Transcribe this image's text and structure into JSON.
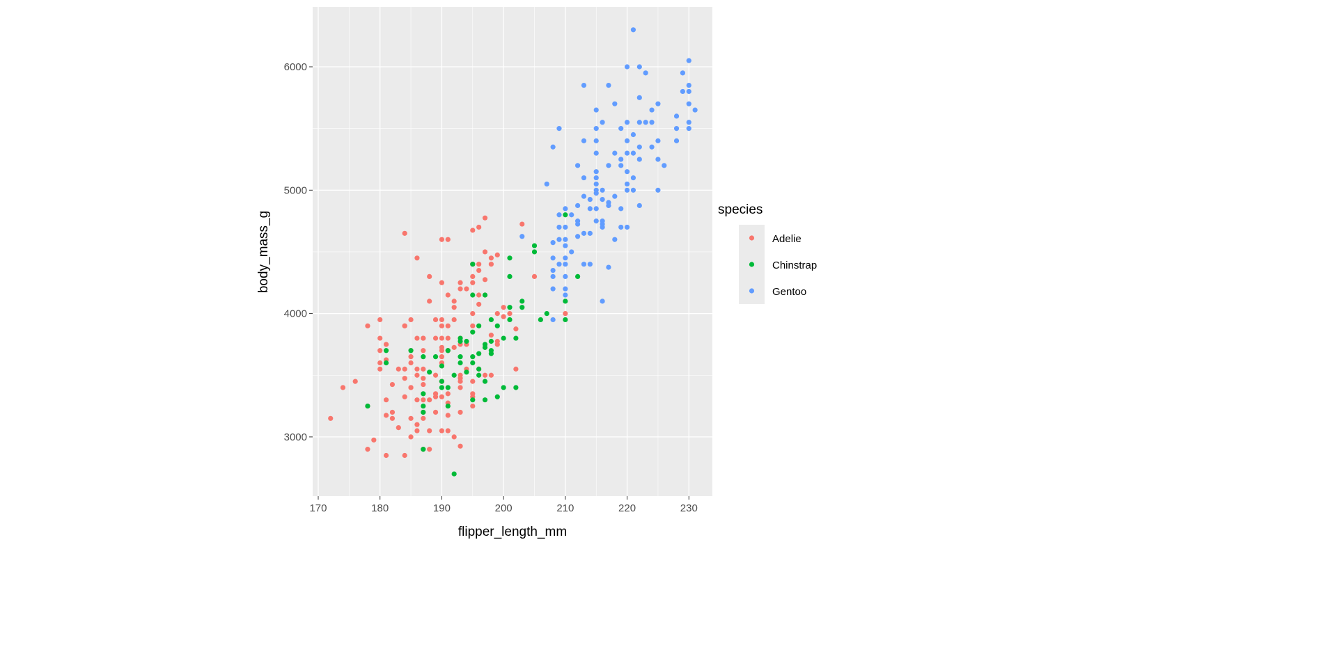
{
  "chart_data": {
    "type": "scatter",
    "xlabel": "flipper_length_mm",
    "ylabel": "body_mass_g",
    "xlim": [
      169.1,
      233.8
    ],
    "ylim": [
      2520,
      6485
    ],
    "xticks": [
      170,
      180,
      190,
      200,
      210,
      220,
      230
    ],
    "yticks": [
      3000,
      4000,
      5000,
      6000
    ],
    "xtick_labels": [
      "170",
      "180",
      "190",
      "200",
      "210",
      "220",
      "230"
    ],
    "ytick_labels": [
      "3000",
      "4000",
      "5000",
      "6000"
    ],
    "grid": true,
    "legend": {
      "title": "species",
      "placement": "right"
    },
    "series": [
      {
        "name": "Adelie",
        "color": "#F8766D",
        "points": [
          [
            181,
            3750
          ],
          [
            186,
            3800
          ],
          [
            195,
            3250
          ],
          [
            193,
            3450
          ],
          [
            190,
            3650
          ],
          [
            181,
            3625
          ],
          [
            195,
            4675
          ],
          [
            193,
            3475
          ],
          [
            190,
            4250
          ],
          [
            186,
            3300
          ],
          [
            180,
            3700
          ],
          [
            182,
            3200
          ],
          [
            191,
            3800
          ],
          [
            198,
            4400
          ],
          [
            185,
            3700
          ],
          [
            195,
            3450
          ],
          [
            197,
            4500
          ],
          [
            184,
            3325
          ],
          [
            194,
            4200
          ],
          [
            174,
            3400
          ],
          [
            180,
            3600
          ],
          [
            189,
            3800
          ],
          [
            185,
            3950
          ],
          [
            180,
            3800
          ],
          [
            187,
            3800
          ],
          [
            183,
            3550
          ],
          [
            187,
            3200
          ],
          [
            172,
            3150
          ],
          [
            180,
            3950
          ],
          [
            178,
            3250
          ],
          [
            178,
            3900
          ],
          [
            188,
            3300
          ],
          [
            184,
            3900
          ],
          [
            195,
            3325
          ],
          [
            196,
            4150
          ],
          [
            190,
            3950
          ],
          [
            180,
            3550
          ],
          [
            181,
            3300
          ],
          [
            184,
            4650
          ],
          [
            182,
            3150
          ],
          [
            195,
            3900
          ],
          [
            186,
            3100
          ],
          [
            196,
            4400
          ],
          [
            185,
            3000
          ],
          [
            190,
            4600
          ],
          [
            182,
            3425
          ],
          [
            179,
            2975
          ],
          [
            190,
            3450
          ],
          [
            191,
            4150
          ],
          [
            186,
            3500
          ],
          [
            188,
            4300
          ],
          [
            190,
            3450
          ],
          [
            200,
            4050
          ],
          [
            187,
            2900
          ],
          [
            191,
            3700
          ],
          [
            186,
            3550
          ],
          [
            193,
            3800
          ],
          [
            181,
            2850
          ],
          [
            194,
            3750
          ],
          [
            185,
            3150
          ],
          [
            195,
            4400
          ],
          [
            185,
            3600
          ],
          [
            192,
            4050
          ],
          [
            184,
            2850
          ],
          [
            192,
            3950
          ],
          [
            195,
            3350
          ],
          [
            188,
            4100
          ],
          [
            190,
            3050
          ],
          [
            198,
            4450
          ],
          [
            190,
            3600
          ],
          [
            190,
            3900
          ],
          [
            196,
            3550
          ],
          [
            197,
            4150
          ],
          [
            190,
            3700
          ],
          [
            195,
            4250
          ],
          [
            191,
            3700
          ],
          [
            184,
            3900
          ],
          [
            187,
            3550
          ],
          [
            195,
            4000
          ],
          [
            189,
            3200
          ],
          [
            196,
            4700
          ],
          [
            187,
            3800
          ],
          [
            193,
            4200
          ],
          [
            191,
            3350
          ],
          [
            194,
            3550
          ],
          [
            190,
            3800
          ],
          [
            189,
            3500
          ],
          [
            189,
            3950
          ],
          [
            190,
            3600
          ],
          [
            202,
            3550
          ],
          [
            205,
            4300
          ],
          [
            185,
            3400
          ],
          [
            186,
            4450
          ],
          [
            187,
            3300
          ],
          [
            196,
            4350
          ],
          [
            178,
            2900
          ],
          [
            192,
            4100
          ],
          [
            192,
            3725
          ],
          [
            203,
            4725
          ],
          [
            183,
            3075
          ],
          [
            193,
            2925
          ],
          [
            184,
            3550
          ],
          [
            199,
            3750
          ],
          [
            181,
            3175
          ],
          [
            197,
            4775
          ],
          [
            198,
            3825
          ],
          [
            191,
            4600
          ],
          [
            193,
            3200
          ],
          [
            197,
            4275
          ],
          [
            191,
            3900
          ],
          [
            196,
            4075
          ],
          [
            188,
            2900
          ],
          [
            199,
            3775
          ],
          [
            189,
            3350
          ],
          [
            189,
            3325
          ],
          [
            187,
            3150
          ],
          [
            198,
            3500
          ],
          [
            176,
            3450
          ],
          [
            202,
            3875
          ],
          [
            186,
            3050
          ],
          [
            199,
            4000
          ],
          [
            191,
            3275
          ],
          [
            195,
            4300
          ],
          [
            191,
            3050
          ],
          [
            210,
            4000
          ],
          [
            190,
            3325
          ],
          [
            197,
            3500
          ],
          [
            193,
            3500
          ],
          [
            199,
            4475
          ],
          [
            187,
            3425
          ],
          [
            191,
            3175
          ],
          [
            200,
            3975
          ],
          [
            185,
            3400
          ],
          [
            193,
            4250
          ],
          [
            193,
            3400
          ],
          [
            187,
            3475
          ],
          [
            188,
            3050
          ],
          [
            190,
            3725
          ],
          [
            192,
            3000
          ],
          [
            185,
            3650
          ],
          [
            184,
            3475
          ],
          [
            193,
            3750
          ],
          [
            187,
            3700
          ],
          [
            201,
            4000
          ]
        ]
      },
      {
        "name": "Chinstrap",
        "color": "#00BA38",
        "points": [
          [
            192,
            3500
          ],
          [
            196,
            3900
          ],
          [
            193,
            3650
          ],
          [
            188,
            3525
          ],
          [
            197,
            3725
          ],
          [
            198,
            3950
          ],
          [
            178,
            3250
          ],
          [
            197,
            3750
          ],
          [
            195,
            4150
          ],
          [
            198,
            3700
          ],
          [
            193,
            3800
          ],
          [
            194,
            3775
          ],
          [
            185,
            3700
          ],
          [
            201,
            4050
          ],
          [
            190,
            3575
          ],
          [
            197,
            3300
          ],
          [
            181,
            3700
          ],
          [
            190,
            3450
          ],
          [
            195,
            4400
          ],
          [
            181,
            3600
          ],
          [
            191,
            3400
          ],
          [
            187,
            2900
          ],
          [
            195,
            3300
          ],
          [
            197,
            4150
          ],
          [
            200,
            3400
          ],
          [
            200,
            3800
          ],
          [
            191,
            3700
          ],
          [
            205,
            4550
          ],
          [
            187,
            3200
          ],
          [
            201,
            4300
          ],
          [
            187,
            3350
          ],
          [
            203,
            4100
          ],
          [
            195,
            3600
          ],
          [
            199,
            3900
          ],
          [
            195,
            3850
          ],
          [
            210,
            4800
          ],
          [
            192,
            2700
          ],
          [
            205,
            4500
          ],
          [
            210,
            3950
          ],
          [
            187,
            3650
          ],
          [
            196,
            3550
          ],
          [
            196,
            3500
          ],
          [
            196,
            3675
          ],
          [
            201,
            4450
          ],
          [
            190,
            3400
          ],
          [
            212,
            4300
          ],
          [
            187,
            3250
          ],
          [
            198,
            3675
          ],
          [
            199,
            3325
          ],
          [
            201,
            3950
          ],
          [
            193,
            3600
          ],
          [
            203,
            4050
          ],
          [
            197,
            3450
          ],
          [
            191,
            3250
          ],
          [
            202,
            3800
          ],
          [
            194,
            3525
          ],
          [
            206,
            3950
          ],
          [
            189,
            3650
          ],
          [
            195,
            3650
          ],
          [
            207,
            4000
          ],
          [
            202,
            3400
          ],
          [
            193,
            3775
          ],
          [
            210,
            4100
          ],
          [
            198,
            3775
          ]
        ]
      },
      {
        "name": "Gentoo",
        "color": "#619CFF",
        "points": [
          [
            211,
            4500
          ],
          [
            230,
            5700
          ],
          [
            210,
            4450
          ],
          [
            218,
            5700
          ],
          [
            215,
            5400
          ],
          [
            210,
            4550
          ],
          [
            211,
            4800
          ],
          [
            219,
            5200
          ],
          [
            209,
            4400
          ],
          [
            215,
            5150
          ],
          [
            214,
            4650
          ],
          [
            216,
            5550
          ],
          [
            213,
            5850
          ],
          [
            210,
            4200
          ],
          [
            217,
            5850
          ],
          [
            210,
            4150
          ],
          [
            221,
            6300
          ],
          [
            209,
            4800
          ],
          [
            222,
            5350
          ],
          [
            215,
            5000
          ],
          [
            213,
            4400
          ],
          [
            215,
            5050
          ],
          [
            215,
            5100
          ],
          [
            216,
            4100
          ],
          [
            215,
            5650
          ],
          [
            210,
            4600
          ],
          [
            220,
            5550
          ],
          [
            222,
            5250
          ],
          [
            209,
            4700
          ],
          [
            207,
            5050
          ],
          [
            230,
            6050
          ],
          [
            220,
            5150
          ],
          [
            220,
            5400
          ],
          [
            213,
            4950
          ],
          [
            219,
            5250
          ],
          [
            208,
            4350
          ],
          [
            208,
            5350
          ],
          [
            208,
            3950
          ],
          [
            225,
            5700
          ],
          [
            210,
            4300
          ],
          [
            216,
            4750
          ],
          [
            222,
            5550
          ],
          [
            217,
            4900
          ],
          [
            225,
            5400
          ],
          [
            213,
            5100
          ],
          [
            215,
            5300
          ],
          [
            210,
            4850
          ],
          [
            220,
            5300
          ],
          [
            210,
            4400
          ],
          [
            225,
            5000
          ],
          [
            220,
            5050
          ],
          [
            208,
            4300
          ],
          [
            220,
            5000
          ],
          [
            208,
            4450
          ],
          [
            224,
            5550
          ],
          [
            208,
            4200
          ],
          [
            221,
            5300
          ],
          [
            214,
            4400
          ],
          [
            231,
            5650
          ],
          [
            219,
            4700
          ],
          [
            229,
            5800
          ],
          [
            220,
            4700
          ],
          [
            223,
            5550
          ],
          [
            221,
            5000
          ],
          [
            221,
            5100
          ],
          [
            217,
            5200
          ],
          [
            216,
            4700
          ],
          [
            230,
            5800
          ],
          [
            209,
            4600
          ],
          [
            220,
            6000
          ],
          [
            215,
            4750
          ],
          [
            223,
            5950
          ],
          [
            212,
            4625
          ],
          [
            221,
            5450
          ],
          [
            212,
            4725
          ],
          [
            224,
            5350
          ],
          [
            212,
            4750
          ],
          [
            228,
            5600
          ],
          [
            218,
            4600
          ],
          [
            218,
            5300
          ],
          [
            212,
            4875
          ],
          [
            230,
            5550
          ],
          [
            218,
            4950
          ],
          [
            228,
            5400
          ],
          [
            224,
            5650
          ],
          [
            214,
            4850
          ],
          [
            226,
            5200
          ],
          [
            216,
            4925
          ],
          [
            222,
            4875
          ],
          [
            203,
            4625
          ],
          [
            225,
            5250
          ],
          [
            219,
            4850
          ],
          [
            215,
            4975
          ],
          [
            228,
            5500
          ],
          [
            216,
            4725
          ],
          [
            215,
            5500
          ],
          [
            210,
            4700
          ],
          [
            219,
            5500
          ],
          [
            208,
            4575
          ],
          [
            209,
            5500
          ],
          [
            216,
            5000
          ],
          [
            229,
            5950
          ],
          [
            213,
            4650
          ],
          [
            230,
            5500
          ],
          [
            217,
            4375
          ],
          [
            230,
            5850
          ],
          [
            217,
            4875
          ],
          [
            222,
            6000
          ],
          [
            214,
            4925
          ],
          [
            215,
            4850
          ],
          [
            222,
            5750
          ],
          [
            212,
            5200
          ],
          [
            213,
            5400
          ]
        ]
      }
    ]
  }
}
